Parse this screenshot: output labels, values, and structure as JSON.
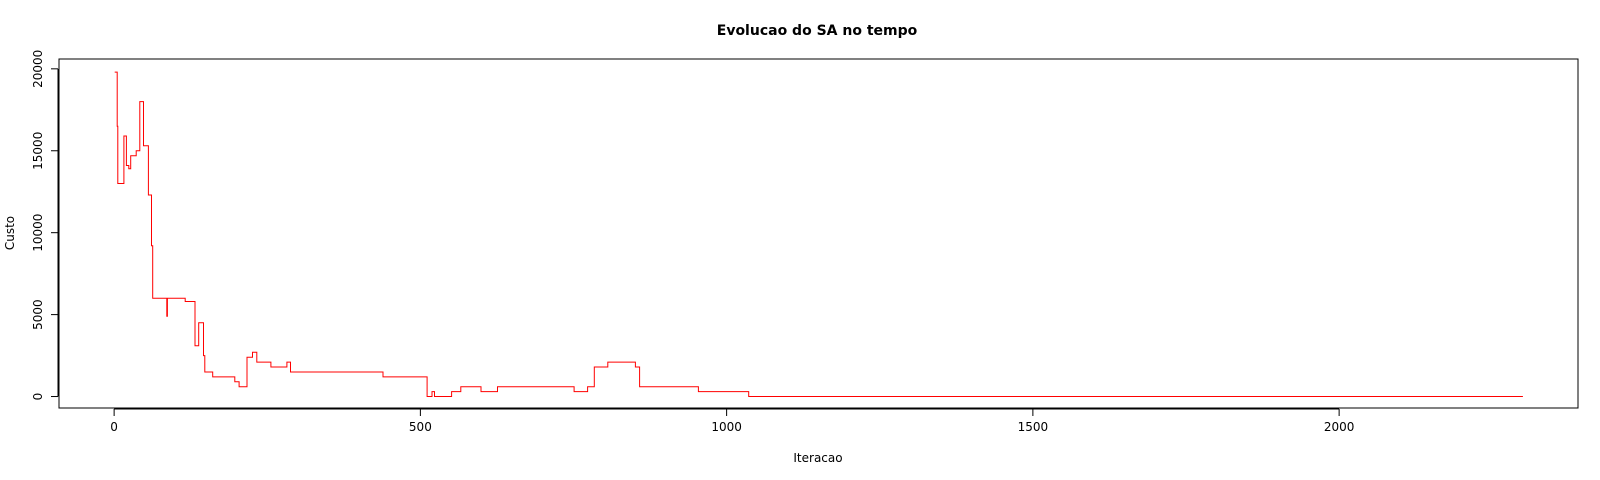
{
  "chart_data": {
    "type": "line",
    "title": "Evolucao do SA no tempo",
    "xlabel": "Iteracao",
    "ylabel": "Custo",
    "xlim": [
      -90,
      2390
    ],
    "ylim": [
      -700,
      20600
    ],
    "xticks": [
      0,
      500,
      1000,
      1500,
      2000
    ],
    "yticks": [
      0,
      5000,
      10000,
      15000,
      20000
    ],
    "grid": false,
    "legend": "none",
    "line_color": "#ff0000",
    "step": true,
    "series": [
      {
        "points": [
          [
            1,
            19800
          ],
          [
            5,
            16500
          ],
          [
            6,
            13000
          ],
          [
            15,
            13000
          ],
          [
            16,
            15900
          ],
          [
            20,
            14100
          ],
          [
            24,
            13900
          ],
          [
            27,
            14700
          ],
          [
            33,
            14700
          ],
          [
            36,
            15000
          ],
          [
            40,
            15000
          ],
          [
            42,
            18000
          ],
          [
            47,
            18000
          ],
          [
            48,
            15300
          ],
          [
            54,
            15300
          ],
          [
            56,
            12300
          ],
          [
            60,
            12300
          ],
          [
            61,
            9200
          ],
          [
            63,
            6000
          ],
          [
            85,
            6000
          ],
          [
            86,
            4900
          ],
          [
            87,
            6000
          ],
          [
            115,
            6000
          ],
          [
            116,
            5800
          ],
          [
            131,
            5800
          ],
          [
            132,
            3100
          ],
          [
            137,
            3100
          ],
          [
            138,
            4500
          ],
          [
            144,
            4500
          ],
          [
            146,
            2500
          ],
          [
            148,
            1500
          ],
          [
            160,
            1500
          ],
          [
            161,
            1200
          ],
          [
            196,
            1200
          ],
          [
            197,
            900
          ],
          [
            203,
            900
          ],
          [
            204,
            600
          ],
          [
            216,
            600
          ],
          [
            217,
            2400
          ],
          [
            224,
            2400
          ],
          [
            226,
            2700
          ],
          [
            232,
            2700
          ],
          [
            233,
            2100
          ],
          [
            255,
            2100
          ],
          [
            256,
            1800
          ],
          [
            281,
            1800
          ],
          [
            282,
            2100
          ],
          [
            287,
            2100
          ],
          [
            288,
            1500
          ],
          [
            438,
            1500
          ],
          [
            439,
            1200
          ],
          [
            510,
            1200
          ],
          [
            511,
            0
          ],
          [
            518,
            0
          ],
          [
            519,
            300
          ],
          [
            522,
            300
          ],
          [
            523,
            0
          ],
          [
            550,
            0
          ],
          [
            551,
            300
          ],
          [
            565,
            300
          ],
          [
            566,
            600
          ],
          [
            598,
            600
          ],
          [
            599,
            300
          ],
          [
            625,
            300
          ],
          [
            626,
            600
          ],
          [
            750,
            600
          ],
          [
            751,
            300
          ],
          [
            772,
            300
          ],
          [
            773,
            600
          ],
          [
            783,
            600
          ],
          [
            784,
            1800
          ],
          [
            805,
            1800
          ],
          [
            806,
            2100
          ],
          [
            850,
            2100
          ],
          [
            851,
            1800
          ],
          [
            857,
            1800
          ],
          [
            858,
            600
          ],
          [
            953,
            600
          ],
          [
            954,
            300
          ],
          [
            1035,
            300
          ],
          [
            1036,
            0
          ],
          [
            2300,
            0
          ]
        ]
      }
    ]
  }
}
